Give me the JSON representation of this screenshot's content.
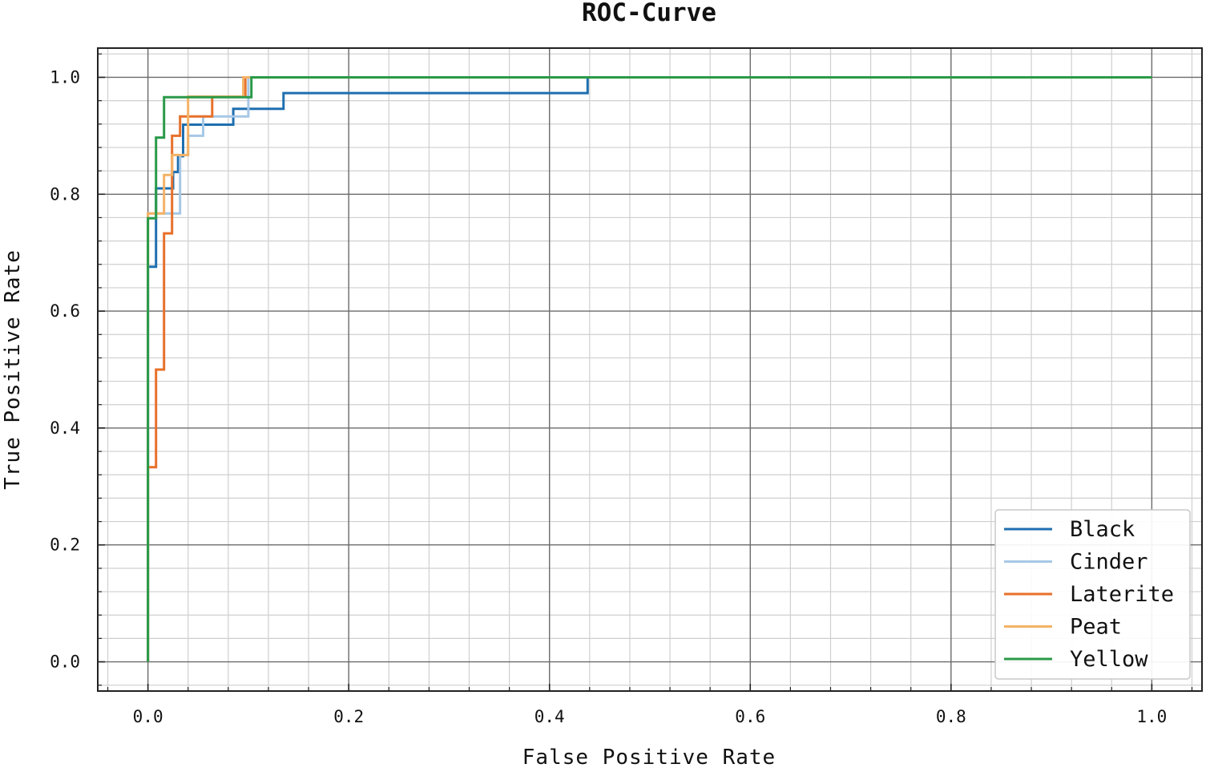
{
  "chart_data": {
    "type": "line",
    "title": "ROC-Curve",
    "xlabel": "False Positive Rate",
    "ylabel": "True Positive Rate",
    "xlim": [
      -0.05,
      1.05
    ],
    "ylim": [
      -0.05,
      1.05
    ],
    "xticks": [
      0.0,
      0.2,
      0.4,
      0.6,
      0.8,
      1.0
    ],
    "yticks": [
      0.0,
      0.2,
      0.4,
      0.6,
      0.8,
      1.0
    ],
    "x_tick_labels": [
      "0.0",
      "0.2",
      "0.4",
      "0.6",
      "0.8",
      "1.0"
    ],
    "y_tick_labels": [
      "0.0",
      "0.2",
      "0.4",
      "0.6",
      "0.8",
      "1.0"
    ],
    "grid": true,
    "minor_grid": true,
    "legend_position": "lower-right",
    "series": [
      {
        "name": "Black",
        "color": "#1f6fb0",
        "x": [
          0.0,
          0.0,
          0.008,
          0.008,
          0.025,
          0.025,
          0.03,
          0.03,
          0.035,
          0.035,
          0.085,
          0.085,
          0.135,
          0.135,
          0.438,
          0.438,
          1.0
        ],
        "y": [
          0.0,
          0.676,
          0.676,
          0.81,
          0.81,
          0.838,
          0.838,
          0.865,
          0.865,
          0.919,
          0.919,
          0.946,
          0.946,
          0.973,
          0.973,
          1.0,
          1.0
        ]
      },
      {
        "name": "Cinder",
        "color": "#a6c8e6",
        "x": [
          0.0,
          0.0,
          0.032,
          0.032,
          0.04,
          0.04,
          0.045,
          0.045,
          0.055,
          0.055,
          0.1,
          0.1,
          1.0
        ],
        "y": [
          0.0,
          0.767,
          0.767,
          0.867,
          0.867,
          0.9,
          0.9,
          0.9,
          0.9,
          0.933,
          0.933,
          1.0,
          1.0
        ]
      },
      {
        "name": "Laterite",
        "color": "#e8702a",
        "x": [
          0.0,
          0.0,
          0.008,
          0.008,
          0.016,
          0.016,
          0.024,
          0.024,
          0.032,
          0.032,
          0.064,
          0.064,
          0.097,
          0.097,
          1.0
        ],
        "y": [
          0.0,
          0.333,
          0.333,
          0.5,
          0.5,
          0.733,
          0.733,
          0.9,
          0.9,
          0.933,
          0.933,
          0.967,
          0.967,
          1.0,
          1.0
        ]
      },
      {
        "name": "Peat",
        "color": "#f4b266",
        "x": [
          0.0,
          0.0,
          0.016,
          0.016,
          0.024,
          0.024,
          0.04,
          0.04,
          0.095,
          0.095,
          1.0
        ],
        "y": [
          0.0,
          0.767,
          0.767,
          0.833,
          0.833,
          0.867,
          0.867,
          0.967,
          0.967,
          1.0,
          1.0
        ]
      },
      {
        "name": "Yellow",
        "color": "#2a9a48",
        "x": [
          0.0,
          0.0,
          0.008,
          0.008,
          0.016,
          0.016,
          0.103,
          0.103,
          1.0
        ],
        "y": [
          0.0,
          0.759,
          0.759,
          0.897,
          0.897,
          0.966,
          0.966,
          1.0,
          1.0
        ]
      }
    ]
  }
}
